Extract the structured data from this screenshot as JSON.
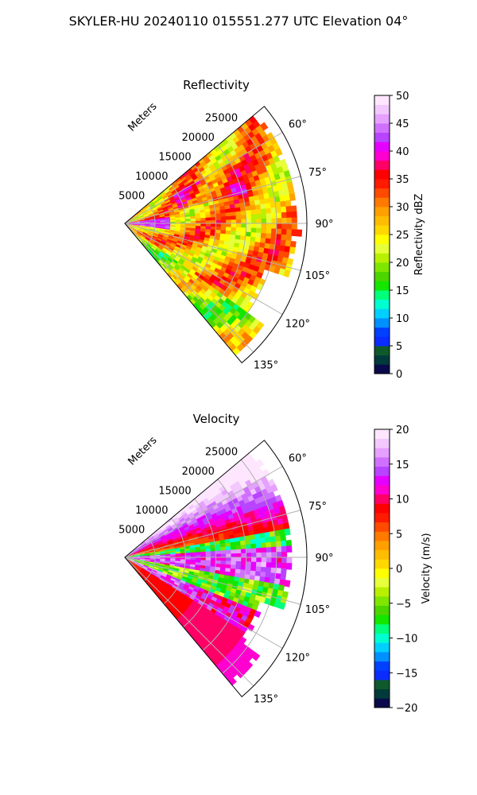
{
  "figure_title": "SKYLER-HU  20240110  015551.277 UTC Elevation 04°",
  "range_unit_label": "Meters",
  "chart_data": [
    {
      "type": "heatmap",
      "projection": "polar-sector",
      "title": "Reflectivity",
      "range_ticks": [
        5000,
        10000,
        15000,
        20000,
        25000
      ],
      "range_labels": [
        "5000",
        "10000",
        "15000",
        "20000",
        "25000"
      ],
      "max_range": 30000,
      "azimuth_range_deg": [
        50,
        140
      ],
      "azimuth_ticks": [
        "60°",
        "75°",
        "90°",
        "105°",
        "120°",
        "135°"
      ],
      "colorbar": {
        "label": "Reflectivity dBZ",
        "min": 0,
        "max": 50,
        "ticks": [
          "0",
          "5",
          "10",
          "15",
          "20",
          "25",
          "30",
          "35",
          "40",
          "45",
          "50"
        ]
      }
    },
    {
      "type": "heatmap",
      "projection": "polar-sector",
      "title": "Velocity",
      "range_ticks": [
        5000,
        10000,
        15000,
        20000,
        25000
      ],
      "range_labels": [
        "5000",
        "10000",
        "15000",
        "20000",
        "25000"
      ],
      "max_range": 30000,
      "azimuth_range_deg": [
        50,
        140
      ],
      "azimuth_ticks": [
        "60°",
        "75°",
        "90°",
        "105°",
        "120°",
        "135°"
      ],
      "colorbar": {
        "label": "Velocity (m/s)",
        "min": -20,
        "max": 20,
        "ticks": [
          "−20",
          "−15",
          "−10",
          "−5",
          "0",
          "5",
          "10",
          "15",
          "20"
        ]
      }
    }
  ],
  "colormap": [
    "#0a0a4a",
    "#003a3a",
    "#0f5a2c",
    "#0a2cff",
    "#0040ff",
    "#0090ff",
    "#00d0ff",
    "#00ffd0",
    "#00ff7a",
    "#14e600",
    "#4cd600",
    "#7ee600",
    "#b8f000",
    "#e6ff3a",
    "#ffff00",
    "#ffd800",
    "#ffbc00",
    "#ffa000",
    "#ff7a00",
    "#ff4a00",
    "#ff1a00",
    "#ff0000",
    "#ff0066",
    "#ff00d0",
    "#e600ff",
    "#b844ff",
    "#d070ff",
    "#e6a0ff",
    "#f2c8ff",
    "#ffe6ff"
  ]
}
